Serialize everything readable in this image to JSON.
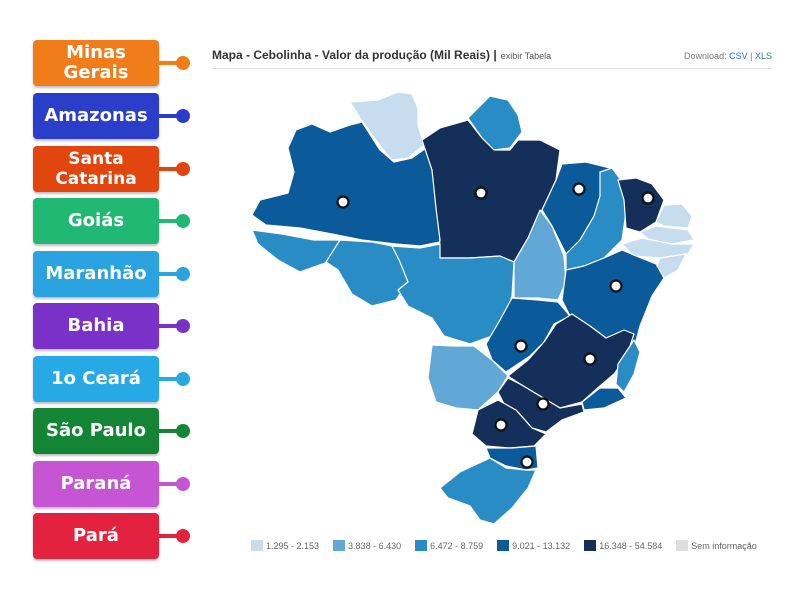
{
  "labels": [
    {
      "id": "minas-gerais",
      "text": "Minas Gerais",
      "color": "#f07d1a"
    },
    {
      "id": "amazonas",
      "text": "Amazonas",
      "color": "#2b3ec9"
    },
    {
      "id": "santa-catarina",
      "text": "Santa Catarina",
      "color": "#e0460d"
    },
    {
      "id": "goias",
      "text": "Goiás",
      "color": "#21b874"
    },
    {
      "id": "maranhao",
      "text": "Maranhão",
      "color": "#2aa3e0"
    },
    {
      "id": "bahia",
      "text": "Bahia",
      "color": "#7a31c8"
    },
    {
      "id": "ceara",
      "text": "1o Ceará",
      "color": "#27a9e6"
    },
    {
      "id": "sao-paulo",
      "text": "São Paulo",
      "color": "#138535"
    },
    {
      "id": "parana",
      "text": "Paraná",
      "color": "#c655d3"
    },
    {
      "id": "para",
      "text": "Pará",
      "color": "#e3223f"
    }
  ],
  "header": {
    "title": "Mapa - Cebolinha - Valor da produção (Mil Reais) |",
    "sub": "exibir Tabela",
    "download_prefix": "Download:",
    "csv": "CSV",
    "separator": "|",
    "xls": "XLS"
  },
  "legend": [
    {
      "label": "1.295 - 2.153",
      "color": "#c6dcef"
    },
    {
      "label": "3.838 - 6.430",
      "color": "#62a8d6"
    },
    {
      "label": "6.472 - 8.759",
      "color": "#2a8cc4"
    },
    {
      "label": "9.021 - 13.132",
      "color": "#0b5a99"
    },
    {
      "label": "16.348 - 54.584",
      "color": "#14305a"
    },
    {
      "label": "Sem informação",
      "color": "#dddddd"
    }
  ],
  "map_colors": {
    "very_light": "#c6dcef",
    "light": "#62a8d6",
    "medium": "#2a8cc4",
    "dark": "#0b5a99",
    "darkest": "#14305a"
  }
}
